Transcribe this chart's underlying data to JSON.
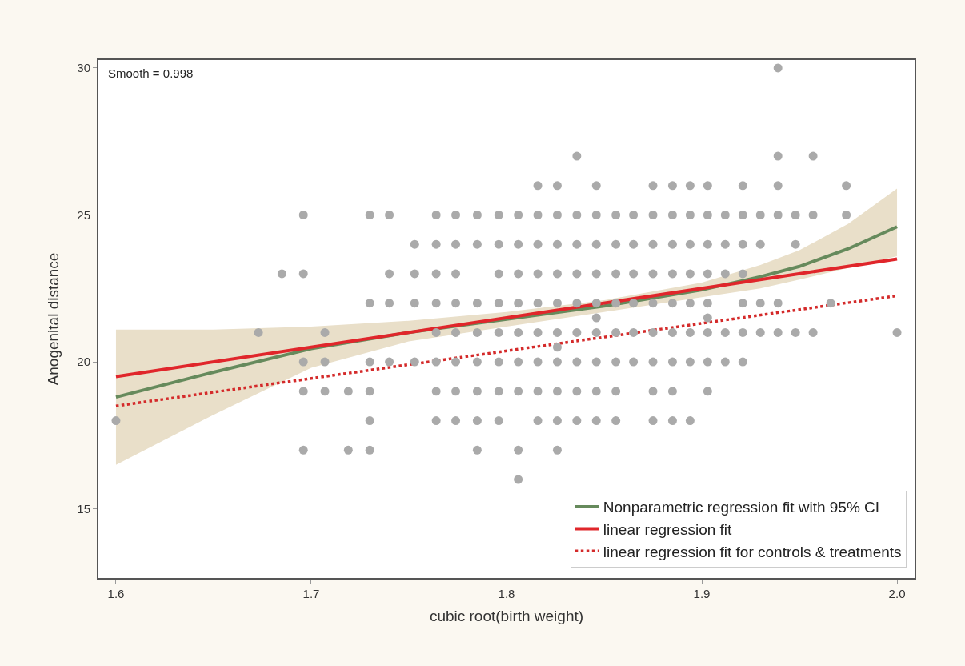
{
  "chart_data": {
    "type": "scatter",
    "xlabel": "cubic root(birth weight)",
    "ylabel": "Anogenital distance",
    "annotations": [
      "Smooth = 0.998"
    ],
    "xlim": [
      1.591,
      2.009
    ],
    "ylim": [
      12.65,
      30.27
    ],
    "xticks": [
      1.6,
      1.7,
      1.8,
      1.9,
      {
        "value": 2,
        "label": "2.0"
      }
    ],
    "yticks": [
      15,
      20,
      25,
      30
    ],
    "grid": false,
    "legend": "bottom right",
    "series": [
      {
        "color": "#aaaaaa",
        "marker": "circle",
        "x": [
          1.6,
          1.673,
          1.685,
          1.696,
          1.696,
          1.696,
          1.696,
          1.696,
          1.707,
          1.707,
          1.707,
          1.719,
          1.719,
          1.73,
          1.73,
          1.73,
          1.73,
          1.73,
          1.73,
          1.74,
          1.74,
          1.74,
          1.74,
          1.753,
          1.753,
          1.753,
          1.753,
          1.764,
          1.764,
          1.764,
          1.764,
          1.764,
          1.764,
          1.764,
          1.764,
          1.774,
          1.774,
          1.774,
          1.774,
          1.774,
          1.774,
          1.774,
          1.774,
          1.785,
          1.785,
          1.785,
          1.785,
          1.785,
          1.785,
          1.785,
          1.785,
          1.796,
          1.796,
          1.796,
          1.796,
          1.796,
          1.796,
          1.796,
          1.796,
          1.806,
          1.806,
          1.806,
          1.806,
          1.806,
          1.806,
          1.806,
          1.806,
          1.806,
          1.816,
          1.816,
          1.816,
          1.816,
          1.816,
          1.816,
          1.816,
          1.816,
          1.816,
          1.826,
          1.826,
          1.826,
          1.826,
          1.826,
          1.826,
          1.826,
          1.826,
          1.826,
          1.826,
          1.826,
          1.836,
          1.836,
          1.836,
          1.836,
          1.836,
          1.836,
          1.836,
          1.836,
          1.836,
          1.846,
          1.846,
          1.846,
          1.846,
          1.846,
          1.846,
          1.846,
          1.846,
          1.846,
          1.846,
          1.856,
          1.856,
          1.856,
          1.856,
          1.856,
          1.856,
          1.856,
          1.856,
          1.865,
          1.865,
          1.865,
          1.865,
          1.865,
          1.865,
          1.875,
          1.875,
          1.875,
          1.875,
          1.875,
          1.875,
          1.875,
          1.875,
          1.875,
          1.885,
          1.885,
          1.885,
          1.885,
          1.885,
          1.885,
          1.885,
          1.885,
          1.885,
          1.894,
          1.894,
          1.894,
          1.894,
          1.894,
          1.894,
          1.894,
          1.894,
          1.903,
          1.903,
          1.903,
          1.903,
          1.903,
          1.903,
          1.903,
          1.903,
          1.903,
          1.912,
          1.912,
          1.912,
          1.912,
          1.912,
          1.921,
          1.921,
          1.921,
          1.921,
          1.921,
          1.921,
          1.921,
          1.93,
          1.93,
          1.93,
          1.93,
          1.939,
          1.939,
          1.939,
          1.939,
          1.939,
          1.939,
          1.948,
          1.948,
          1.948,
          1.957,
          1.957,
          1.957,
          1.966,
          1.974,
          1.974,
          2.0
        ],
        "values": [
          18,
          21,
          23,
          25,
          23,
          20,
          19,
          17,
          21,
          20,
          19,
          19,
          17,
          25,
          22,
          20,
          19,
          18,
          17,
          25,
          23,
          22,
          20,
          24,
          23,
          22,
          20,
          25,
          24,
          23,
          22,
          21,
          20,
          19,
          18,
          25,
          24,
          23,
          22,
          21,
          20,
          19,
          18,
          25,
          24,
          22,
          21,
          20,
          19,
          18,
          17,
          25,
          24,
          23,
          22,
          21,
          20,
          19,
          18,
          25,
          24,
          23,
          22,
          21,
          20,
          19,
          17,
          16,
          26,
          25,
          24,
          23,
          22,
          21,
          20,
          19,
          18,
          26,
          25,
          24,
          23,
          22,
          21,
          20.5,
          20,
          19,
          18,
          17,
          27,
          25,
          24,
          23,
          22,
          21,
          20,
          19,
          18,
          26,
          25,
          24,
          23,
          22,
          21.5,
          21,
          20,
          19,
          18,
          25,
          24,
          23,
          22,
          21,
          20,
          19,
          18,
          25,
          24,
          23,
          22,
          21,
          20,
          26,
          25,
          24,
          23,
          22,
          21,
          20,
          19,
          18,
          26,
          25,
          24,
          23,
          22,
          21,
          20,
          19,
          18,
          26,
          25,
          24,
          23,
          22,
          21,
          20,
          18,
          26,
          25,
          24,
          23,
          22,
          21.5,
          21,
          20,
          19,
          25,
          24,
          23,
          21,
          20,
          26,
          25,
          24,
          23,
          22,
          21,
          20,
          25,
          24,
          22,
          21,
          30,
          27,
          26,
          25,
          22,
          21,
          25,
          24,
          21,
          27,
          25,
          21,
          22,
          26,
          25,
          21
        ]
      },
      {
        "type": "line",
        "name": "Nonparametric regression fit with 95% CI",
        "color": "#668a5c",
        "line_style": "solid",
        "x": [
          1.6,
          1.65,
          1.7,
          1.75,
          1.8,
          1.85,
          1.9,
          1.93,
          1.95,
          1.975,
          2.0
        ],
        "values": [
          18.8,
          19.65,
          20.45,
          21.0,
          21.45,
          21.9,
          22.45,
          22.9,
          23.25,
          23.85,
          24.6
        ],
        "lower": [
          16.5,
          18.2,
          19.8,
          20.7,
          21.2,
          21.7,
          22.2,
          22.5,
          22.8,
          23.2,
          23.6
        ],
        "upper": [
          21.1,
          21.1,
          21.2,
          21.4,
          21.7,
          22.1,
          22.7,
          23.3,
          23.8,
          24.7,
          25.9
        ]
      },
      {
        "type": "line",
        "name": "linear regression fit",
        "color": "#e0262b",
        "line_style": "solid",
        "x": [
          1.6,
          2.0
        ],
        "values": [
          19.5,
          23.5
        ]
      },
      {
        "type": "line",
        "name": "linear regression fit for controls & treatments",
        "color": "#d42a2a",
        "line_style": "dotted",
        "x": [
          1.6,
          2.0
        ],
        "values": [
          18.5,
          22.25
        ]
      }
    ]
  }
}
